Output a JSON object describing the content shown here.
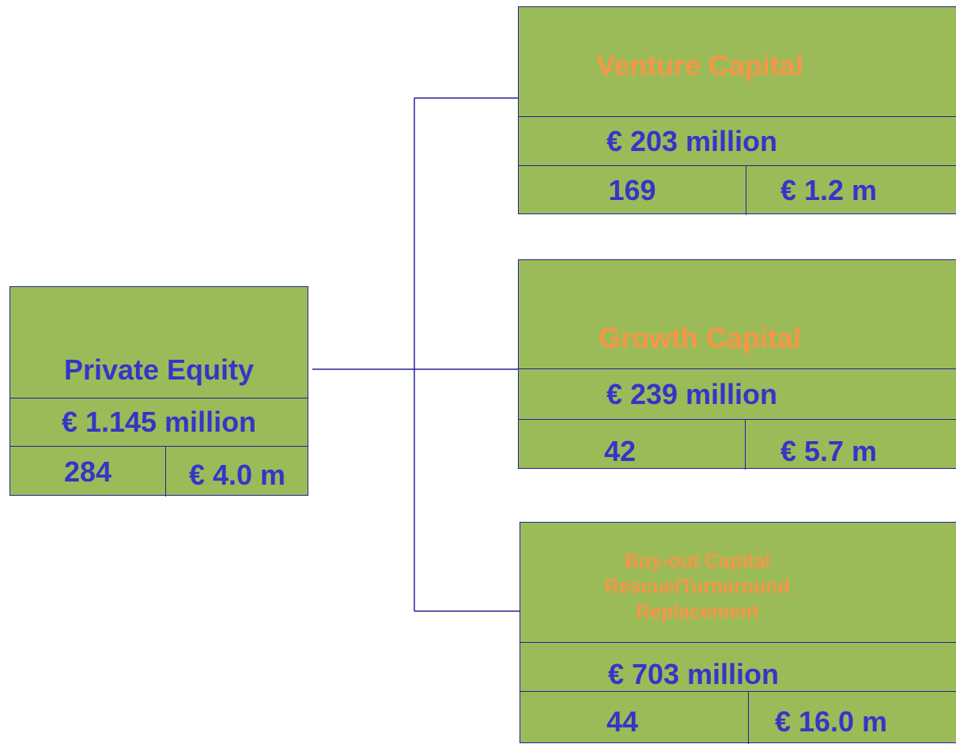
{
  "nodes": [
    {
      "title": [
        "Private Equity"
      ],
      "total": "€ 1.145 million",
      "count": "284",
      "average": "€ 4.0 m"
    },
    {
      "title": [
        "Venture Capital"
      ],
      "total": "€ 203 million",
      "count": "169",
      "average": "€ 1.2 m"
    },
    {
      "title": [
        "Growth Capital"
      ],
      "total": "€ 239 million",
      "count": "42",
      "average": "€ 5.7 m"
    },
    {
      "title": [
        "Buy-out Capital",
        "Rescue/Turnaround",
        "Replacement"
      ],
      "total": "€ 703 million",
      "count": "44",
      "average": "€ 16.0 m"
    }
  ]
}
